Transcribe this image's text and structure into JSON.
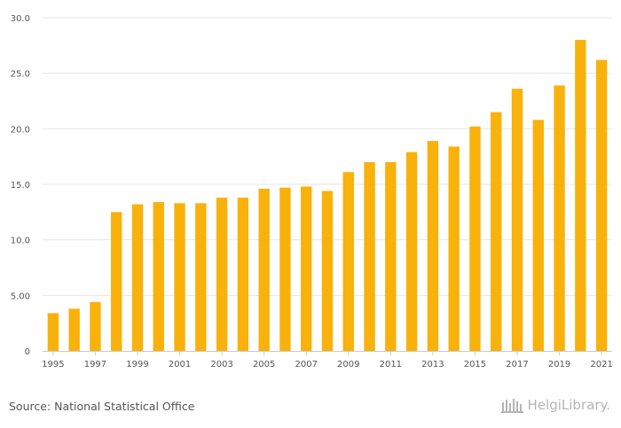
{
  "chart_data": {
    "type": "bar",
    "categories": [
      "1995",
      "1996",
      "1997",
      "1998",
      "1999",
      "2000",
      "2001",
      "2002",
      "2003",
      "2004",
      "2005",
      "2006",
      "2007",
      "2008",
      "2009",
      "2010",
      "2011",
      "2012",
      "2013",
      "2014",
      "2015",
      "2016",
      "2017",
      "2018",
      "2019",
      "2020",
      "2021"
    ],
    "values": [
      3.4,
      3.8,
      4.4,
      12.5,
      13.2,
      13.4,
      13.3,
      13.3,
      13.8,
      13.8,
      14.6,
      14.7,
      14.8,
      14.4,
      16.1,
      17.0,
      17.0,
      17.9,
      18.9,
      18.4,
      20.2,
      21.5,
      23.6,
      20.8,
      23.9,
      28.0,
      26.2
    ],
    "x_tick_labels": [
      "1995",
      "1997",
      "1999",
      "2001",
      "2003",
      "2005",
      "2007",
      "2009",
      "2011",
      "2013",
      "2015",
      "2017",
      "2019",
      "2021"
    ],
    "y_ticks": [
      0,
      5,
      10,
      15,
      20,
      25,
      30
    ],
    "y_tick_labels": [
      "0",
      "5.00",
      "10.0",
      "15.0",
      "20.0",
      "25.0",
      "30.0"
    ],
    "ylim": [
      0,
      30
    ],
    "title": "",
    "xlabel": "",
    "ylabel": "",
    "grid": true,
    "bar_color": "#f9b10b",
    "grid_color": "#e6e6e6"
  },
  "footer": {
    "source": "Source: National Statistical Office",
    "brand": "HelgiLibrary."
  }
}
